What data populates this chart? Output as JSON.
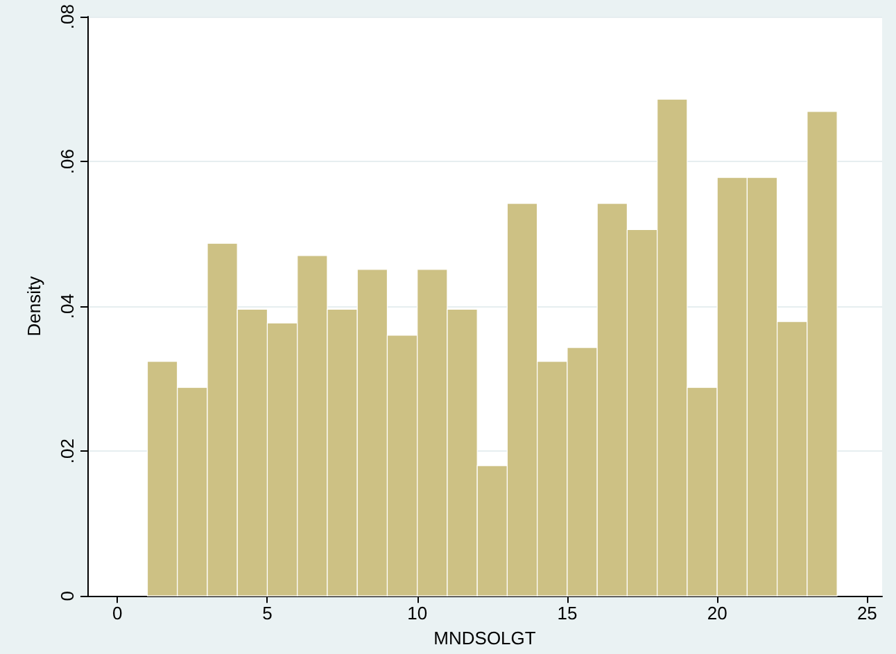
{
  "chart_data": {
    "type": "histogram",
    "xlabel": "MNDSOLGT",
    "ylabel": "Density",
    "bins": [
      1,
      2,
      3,
      4,
      5,
      6,
      7,
      8,
      9,
      10,
      11,
      12,
      13,
      14,
      15,
      16,
      17,
      18,
      19,
      20,
      21,
      22,
      23,
      24
    ],
    "values": [
      0.0324,
      0.0288,
      0.0487,
      0.0396,
      0.0377,
      0.047,
      0.0396,
      0.0451,
      0.036,
      0.0451,
      0.0396,
      0.018,
      0.0542,
      0.0324,
      0.0343,
      0.0542,
      0.0506,
      0.0686,
      0.0288,
      0.0578,
      0.0578,
      0.0379,
      0.0669
    ],
    "color": "#cdc184",
    "xlim": [
      -1,
      25.5
    ],
    "xticks": [
      0,
      5,
      10,
      15,
      20,
      25
    ],
    "ylim": [
      0,
      0.08
    ],
    "yticks": [
      0,
      {
        "value": 0.02,
        "label": ".02"
      },
      {
        "value": 0.04,
        "label": ".04"
      },
      {
        "value": 0.06,
        "label": ".06"
      },
      {
        "value": 0.08,
        "label": ".08"
      }
    ],
    "grid": "y"
  }
}
